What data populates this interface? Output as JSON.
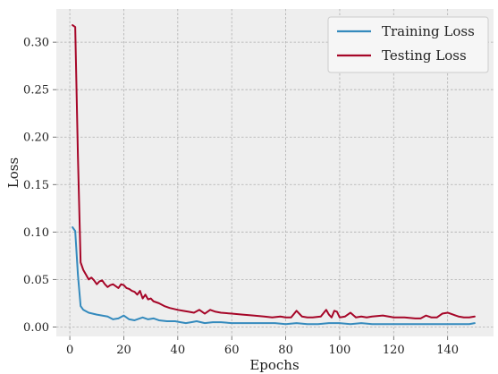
{
  "chart_data": {
    "type": "line",
    "title": "",
    "xlabel": "Epochs",
    "ylabel": "Loss",
    "xlim": [
      -5,
      157
    ],
    "ylim": [
      -0.01,
      0.335
    ],
    "x_ticks": [
      0,
      20,
      40,
      60,
      80,
      100,
      120,
      140
    ],
    "x_tick_labels": [
      "0",
      "20",
      "40",
      "60",
      "80",
      "100",
      "120",
      "140"
    ],
    "y_ticks": [
      0.0,
      0.05,
      0.1,
      0.15,
      0.2,
      0.25,
      0.3
    ],
    "y_tick_labels": [
      "0.00",
      "0.05",
      "0.10",
      "0.15",
      "0.20",
      "0.25",
      "0.30"
    ],
    "grid": true,
    "legend_position": "top-right",
    "colors": {
      "background": "#eeeeee",
      "grid": "#b0b0b0",
      "training": "#348abd",
      "testing": "#a60628"
    },
    "series": [
      {
        "name": "Training Loss",
        "color": "#348abd",
        "points": [
          [
            1,
            0.105
          ],
          [
            2,
            0.101
          ],
          [
            3,
            0.055
          ],
          [
            4,
            0.022
          ],
          [
            5,
            0.018
          ],
          [
            7,
            0.015
          ],
          [
            10,
            0.013
          ],
          [
            14,
            0.011
          ],
          [
            16,
            0.008
          ],
          [
            18,
            0.009
          ],
          [
            20,
            0.012
          ],
          [
            22,
            0.008
          ],
          [
            24,
            0.007
          ],
          [
            26,
            0.009
          ],
          [
            27,
            0.01
          ],
          [
            29,
            0.008
          ],
          [
            31,
            0.009
          ],
          [
            33,
            0.007
          ],
          [
            36,
            0.006
          ],
          [
            39,
            0.006
          ],
          [
            41,
            0.005
          ],
          [
            43,
            0.004
          ],
          [
            45,
            0.005
          ],
          [
            47,
            0.006
          ],
          [
            50,
            0.004
          ],
          [
            53,
            0.005
          ],
          [
            56,
            0.005
          ],
          [
            60,
            0.004
          ],
          [
            64,
            0.004
          ],
          [
            68,
            0.004
          ],
          [
            72,
            0.004
          ],
          [
            76,
            0.004
          ],
          [
            80,
            0.003
          ],
          [
            84,
            0.004
          ],
          [
            88,
            0.003
          ],
          [
            92,
            0.003
          ],
          [
            96,
            0.004
          ],
          [
            100,
            0.004
          ],
          [
            104,
            0.003
          ],
          [
            108,
            0.004
          ],
          [
            112,
            0.003
          ],
          [
            116,
            0.003
          ],
          [
            120,
            0.003
          ],
          [
            124,
            0.003
          ],
          [
            128,
            0.003
          ],
          [
            132,
            0.003
          ],
          [
            136,
            0.003
          ],
          [
            140,
            0.003
          ],
          [
            144,
            0.003
          ],
          [
            148,
            0.003
          ],
          [
            150,
            0.004
          ]
        ]
      },
      {
        "name": "Testing Loss",
        "color": "#a60628",
        "points": [
          [
            1,
            0.318
          ],
          [
            2,
            0.316
          ],
          [
            3,
            0.18
          ],
          [
            4,
            0.068
          ],
          [
            5,
            0.06
          ],
          [
            6,
            0.055
          ],
          [
            7,
            0.05
          ],
          [
            8,
            0.052
          ],
          [
            9,
            0.049
          ],
          [
            10,
            0.045
          ],
          [
            11,
            0.048
          ],
          [
            12,
            0.049
          ],
          [
            13,
            0.045
          ],
          [
            14,
            0.042
          ],
          [
            15,
            0.044
          ],
          [
            16,
            0.045
          ],
          [
            17,
            0.043
          ],
          [
            18,
            0.041
          ],
          [
            19,
            0.045
          ],
          [
            20,
            0.044
          ],
          [
            21,
            0.041
          ],
          [
            22,
            0.04
          ],
          [
            23,
            0.038
          ],
          [
            24,
            0.037
          ],
          [
            25,
            0.034
          ],
          [
            26,
            0.038
          ],
          [
            27,
            0.03
          ],
          [
            28,
            0.034
          ],
          [
            29,
            0.029
          ],
          [
            30,
            0.03
          ],
          [
            31,
            0.027
          ],
          [
            33,
            0.025
          ],
          [
            35,
            0.022
          ],
          [
            37,
            0.02
          ],
          [
            40,
            0.018
          ],
          [
            42,
            0.017
          ],
          [
            44,
            0.016
          ],
          [
            46,
            0.015
          ],
          [
            48,
            0.018
          ],
          [
            50,
            0.014
          ],
          [
            52,
            0.018
          ],
          [
            54,
            0.016
          ],
          [
            56,
            0.015
          ],
          [
            60,
            0.014
          ],
          [
            64,
            0.013
          ],
          [
            68,
            0.012
          ],
          [
            72,
            0.011
          ],
          [
            75,
            0.01
          ],
          [
            78,
            0.011
          ],
          [
            80,
            0.01
          ],
          [
            82,
            0.01
          ],
          [
            84,
            0.017
          ],
          [
            86,
            0.011
          ],
          [
            88,
            0.01
          ],
          [
            90,
            0.01
          ],
          [
            93,
            0.011
          ],
          [
            95,
            0.018
          ],
          [
            96,
            0.013
          ],
          [
            97,
            0.01
          ],
          [
            98,
            0.017
          ],
          [
            99,
            0.016
          ],
          [
            100,
            0.01
          ],
          [
            102,
            0.011
          ],
          [
            104,
            0.015
          ],
          [
            106,
            0.01
          ],
          [
            108,
            0.011
          ],
          [
            110,
            0.01
          ],
          [
            112,
            0.011
          ],
          [
            116,
            0.012
          ],
          [
            120,
            0.01
          ],
          [
            124,
            0.01
          ],
          [
            128,
            0.009
          ],
          [
            130,
            0.009
          ],
          [
            132,
            0.012
          ],
          [
            134,
            0.01
          ],
          [
            136,
            0.01
          ],
          [
            138,
            0.014
          ],
          [
            140,
            0.015
          ],
          [
            142,
            0.013
          ],
          [
            144,
            0.011
          ],
          [
            146,
            0.01
          ],
          [
            148,
            0.01
          ],
          [
            150,
            0.011
          ]
        ]
      }
    ]
  }
}
